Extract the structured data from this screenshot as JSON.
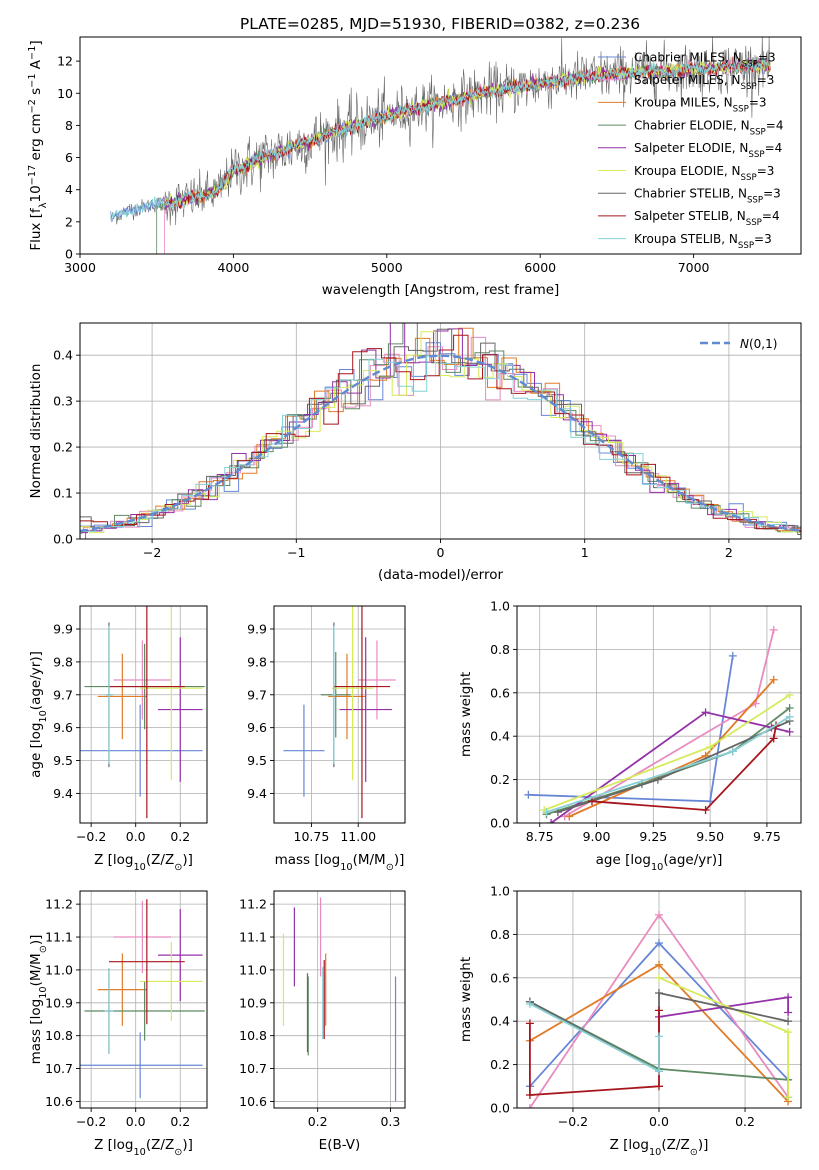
{
  "figure_title": "PLATE=0285, MJD=51930, FIBERID=0382, z=0.236",
  "models": [
    {
      "name": "Chabrier MILES, N$_{SSP}$=3",
      "color": "#6787d6"
    },
    {
      "name": "Salpeter MILES, N$_{SSP}$=3",
      "color": "#e88cc0"
    },
    {
      "name": "Kroupa MILES, N$_{SSP}$=3",
      "color": "#e07b28"
    },
    {
      "name": "Chabrier ELODIE, N$_{SSP}$=4",
      "color": "#5f8a64"
    },
    {
      "name": "Salpeter ELODIE, N$_{SSP}$=4",
      "color": "#9430a8"
    },
    {
      "name": "Kroupa ELODIE, N$_{SSP}$=3",
      "color": "#d6ea5a"
    },
    {
      "name": "Chabrier STELIB, N$_{SSP}$=3",
      "color": "#666666"
    },
    {
      "name": "Salpeter STELIB, N$_{SSP}$=4",
      "color": "#a8161d"
    },
    {
      "name": "Kroupa STELIB, N$_{SSP}$=3",
      "color": "#86d0d6"
    }
  ],
  "chart_data": [
    {
      "id": "spectrum",
      "type": "line",
      "xlabel": "wavelength [Angstrom, rest frame]",
      "ylabel": "Flux [f$_\\lambda$10$^{-17}$ erg cm$^{-2}$ s$^{-1}$ A$^{-1}$]",
      "xlim": [
        3000,
        7700
      ],
      "ylim": [
        0,
        13.5
      ],
      "xticks": [
        3000,
        4000,
        5000,
        6000,
        7000
      ],
      "yticks": [
        0,
        2,
        4,
        6,
        8,
        10,
        12
      ],
      "grid": false,
      "legend": "upper right",
      "continuum": {
        "x": [
          3200,
          3300,
          3400,
          3500,
          3600,
          3700,
          3800,
          3900,
          4000,
          4200,
          4400,
          4600,
          4800,
          5000,
          5200,
          5400,
          5600,
          5800,
          6000,
          6200,
          6400,
          6600,
          6800,
          7000,
          7200,
          7400,
          7500
        ],
        "y": [
          2.2,
          2.6,
          2.9,
          3.1,
          3.2,
          3.4,
          3.6,
          3.9,
          5.2,
          6.0,
          6.7,
          7.4,
          8.0,
          8.6,
          9.1,
          9.5,
          10.0,
          10.3,
          10.6,
          10.9,
          11.1,
          11.3,
          11.4,
          11.5,
          11.6,
          11.7,
          11.7
        ]
      }
    },
    {
      "id": "residuals",
      "type": "line",
      "xlabel": "(data-model)/error",
      "ylabel": "Normed distribution",
      "xlim": [
        -2.5,
        2.5
      ],
      "ylim": [
        0,
        0.47
      ],
      "xticks": [
        -2,
        -1,
        0,
        1,
        2
      ],
      "yticks": [
        0.0,
        0.1,
        0.2,
        0.3,
        0.4
      ],
      "grid": true,
      "legend": "upper right",
      "reference_label": "$\\mathcal{N}(0,1)$",
      "reference_mean": 0,
      "reference_sigma": 1
    },
    {
      "id": "age_vs_z",
      "type": "scatter",
      "xlabel": "Z [log$_{10}$(Z/Z$_\\odot$)]",
      "ylabel": "age  [log$_{10}$(age/yr)]",
      "xlim": [
        -0.25,
        0.32
      ],
      "ylim": [
        9.31,
        9.97
      ],
      "xticks": [
        -0.2,
        0.0,
        0.2
      ],
      "xtick_labels": [
        "−0.2",
        "0.0",
        "0.2"
      ],
      "yticks": [
        9.4,
        9.5,
        9.6,
        9.7,
        9.8,
        9.9
      ],
      "grid": true,
      "points": [
        {
          "x": 0.02,
          "y": 9.53,
          "xerr": 0.28,
          "yerr": 0.14,
          "series": 0
        },
        {
          "x": 0.03,
          "y": 9.745,
          "xerr": 0.13,
          "yerr": 0.12,
          "series": 1
        },
        {
          "x": -0.06,
          "y": 9.695,
          "xerr": 0.11,
          "yerr": 0.13,
          "series": 2
        },
        {
          "x": 0.04,
          "y": 9.725,
          "xerr": 0.27,
          "yerr": 0.13,
          "series": 3
        },
        {
          "x": 0.2,
          "y": 9.655,
          "xerr": 0.1,
          "yerr": 0.22,
          "series": 4
        },
        {
          "x": 0.16,
          "y": 9.72,
          "xerr": 0.14,
          "yerr": 0.28,
          "series": 5
        },
        {
          "x": -0.12,
          "y": 9.7,
          "xerr": 0.01,
          "yerr": 0.22,
          "series": 6
        },
        {
          "x": 0.05,
          "y": 9.725,
          "xerr": 0.17,
          "yerr": 0.4,
          "series": 7
        },
        {
          "x": -0.12,
          "y": 9.7,
          "xerr": 0.02,
          "yerr": 0.21,
          "series": 8
        }
      ]
    },
    {
      "id": "age_vs_mass",
      "type": "scatter",
      "xlabel": "mass [log$_{10}$(M/M$_\\odot$)]",
      "xlim": [
        10.55,
        11.25
      ],
      "ylim": [
        9.31,
        9.97
      ],
      "xticks": [
        10.75,
        11.0
      ],
      "xtick_labels": [
        "10.75",
        "11.00"
      ],
      "yticks": [
        9.4,
        9.5,
        9.6,
        9.7,
        9.8,
        9.9
      ],
      "grid": true,
      "points": [
        {
          "x": 10.71,
          "y": 9.53,
          "xerr": 0.11,
          "yerr": 0.14,
          "series": 0
        },
        {
          "x": 11.1,
          "y": 9.745,
          "xerr": 0.1,
          "yerr": 0.12,
          "series": 1
        },
        {
          "x": 10.94,
          "y": 9.695,
          "xerr": 0.1,
          "yerr": 0.13,
          "series": 2
        },
        {
          "x": 10.88,
          "y": 9.7,
          "xerr": 0.08,
          "yerr": 0.13,
          "series": 3
        },
        {
          "x": 11.04,
          "y": 9.655,
          "xerr": 0.14,
          "yerr": 0.22,
          "series": 4
        },
        {
          "x": 10.97,
          "y": 9.72,
          "xerr": 0.11,
          "yerr": 0.28,
          "series": 5
        },
        {
          "x": 10.87,
          "y": 9.7,
          "xerr": 0.005,
          "yerr": 0.22,
          "series": 6
        },
        {
          "x": 11.02,
          "y": 9.725,
          "xerr": 0.15,
          "yerr": 0.4,
          "series": 7
        },
        {
          "x": 10.87,
          "y": 9.7,
          "xerr": 0.01,
          "yerr": 0.21,
          "series": 8
        }
      ]
    },
    {
      "id": "weight_vs_age",
      "type": "line",
      "xlabel": "age  [log$_{10}$(age/yr)]",
      "ylabel": "mass weight",
      "xlim": [
        8.65,
        9.9
      ],
      "ylim": [
        0,
        1
      ],
      "xticks": [
        8.75,
        9.0,
        9.25,
        9.5,
        9.75
      ],
      "xtick_labels": [
        "8.75",
        "9.00",
        "9.25",
        "9.50",
        "9.75"
      ],
      "yticks": [
        0.0,
        0.2,
        0.4,
        0.6,
        0.8,
        1.0
      ],
      "grid": true,
      "series": [
        {
          "x": [
            8.7,
            9.5,
            9.6
          ],
          "y": [
            0.13,
            0.1,
            0.77
          ],
          "color_index": 0
        },
        {
          "x": [
            8.86,
            9.7,
            9.78
          ],
          "y": [
            0.03,
            0.55,
            0.89
          ],
          "color_index": 1
        },
        {
          "x": [
            8.88,
            9.48,
            9.78
          ],
          "y": [
            0.03,
            0.31,
            0.66
          ],
          "color_index": 2
        },
        {
          "x": [
            8.78,
            9.2,
            9.6,
            9.85
          ],
          "y": [
            0.04,
            0.18,
            0.33,
            0.53
          ],
          "color_index": 3
        },
        {
          "x": [
            8.8,
            9.48,
            9.77,
            9.85
          ],
          "y": [
            0.0,
            0.51,
            0.44,
            0.42
          ],
          "color_index": 4
        },
        {
          "x": [
            8.77,
            9.5,
            9.85
          ],
          "y": [
            0.06,
            0.35,
            0.59
          ],
          "color_index": 5
        },
        {
          "x": [
            8.83,
            9.27,
            9.85
          ],
          "y": [
            0.05,
            0.2,
            0.47
          ],
          "color_index": 6
        },
        {
          "x": [
            8.98,
            9.48,
            9.78,
            9.79
          ],
          "y": [
            0.1,
            0.06,
            0.39,
            0.45
          ],
          "color_index": 7
        },
        {
          "x": [
            8.78,
            9.6,
            9.85
          ],
          "y": [
            0.05,
            0.33,
            0.49
          ],
          "color_index": 8
        }
      ]
    },
    {
      "id": "mass_vs_z",
      "type": "scatter",
      "xlabel": "Z [log$_{10}$(Z/Z$_\\odot$)]",
      "ylabel": "mass [log$_{10}$(M/M$_\\odot$)]",
      "xlim": [
        -0.25,
        0.32
      ],
      "ylim": [
        10.58,
        11.24
      ],
      "xticks": [
        -0.2,
        0.0,
        0.2
      ],
      "xtick_labels": [
        "−0.2",
        "0.0",
        "0.2"
      ],
      "yticks": [
        10.6,
        10.7,
        10.8,
        10.9,
        11.0,
        11.1,
        11.2
      ],
      "grid": true,
      "points": [
        {
          "x": 0.02,
          "y": 10.71,
          "xerr": 0.28,
          "yerr": 0.1,
          "series": 0
        },
        {
          "x": 0.03,
          "y": 11.1,
          "xerr": 0.13,
          "yerr": 0.11,
          "series": 1
        },
        {
          "x": -0.06,
          "y": 10.94,
          "xerr": 0.11,
          "yerr": 0.11,
          "series": 2
        },
        {
          "x": 0.04,
          "y": 10.875,
          "xerr": 0.27,
          "yerr": 0.09,
          "series": 3
        },
        {
          "x": 0.2,
          "y": 11.045,
          "xerr": 0.1,
          "yerr": 0.14,
          "series": 4
        },
        {
          "x": 0.16,
          "y": 10.965,
          "xerr": 0.14,
          "yerr": 0.12,
          "series": 5
        },
        {
          "x": -0.12,
          "y": 10.875,
          "xerr": 0.01,
          "yerr": 0.13,
          "series": 6
        },
        {
          "x": 0.05,
          "y": 11.025,
          "xerr": 0.17,
          "yerr": 0.19,
          "series": 7
        },
        {
          "x": -0.12,
          "y": 10.875,
          "xerr": 0.02,
          "yerr": 0.13,
          "series": 8
        }
      ]
    },
    {
      "id": "mass_vs_ebv",
      "type": "scatter",
      "xlabel": "E(B-V)",
      "xlim": [
        0.14,
        0.32
      ],
      "ylim": [
        10.58,
        11.24
      ],
      "xticks": [
        0.2,
        0.3
      ],
      "xtick_labels": [
        "0.2",
        "0.3"
      ],
      "yticks": [
        10.6,
        10.7,
        10.8,
        10.9,
        11.0,
        11.1,
        11.2
      ],
      "grid": true,
      "points": [
        {
          "x": 0.307,
          "y": 10.79,
          "xerr": 0,
          "yerr": 0.19,
          "series": 0
        },
        {
          "x": 0.204,
          "y": 11.1,
          "xerr": 0,
          "yerr": 0.12,
          "series": 1
        },
        {
          "x": 0.211,
          "y": 10.94,
          "xerr": 0,
          "yerr": 0.11,
          "series": 2
        },
        {
          "x": 0.187,
          "y": 10.86,
          "xerr": 0,
          "yerr": 0.12,
          "series": 3
        },
        {
          "x": 0.168,
          "y": 11.07,
          "xerr": 0,
          "yerr": 0.12,
          "series": 4
        },
        {
          "x": 0.153,
          "y": 10.97,
          "xerr": 0,
          "yerr": 0.14,
          "series": 5
        },
        {
          "x": 0.186,
          "y": 10.87,
          "xerr": 0,
          "yerr": 0.12,
          "series": 6
        },
        {
          "x": 0.209,
          "y": 10.91,
          "xerr": 0,
          "yerr": 0.12,
          "series": 7
        },
        {
          "x": 0.207,
          "y": 10.9,
          "xerr": 0,
          "yerr": 0.11,
          "series": 8
        }
      ]
    },
    {
      "id": "weight_vs_z",
      "type": "line",
      "xlabel": "Z [log$_{10}$(Z/Z$_\\odot$)]",
      "ylabel": "mass weight",
      "xlim": [
        -0.33,
        0.33
      ],
      "ylim": [
        0,
        1
      ],
      "xticks": [
        -0.2,
        0.0,
        0.2
      ],
      "xtick_labels": [
        "−0.2",
        "0.0",
        "0.2"
      ],
      "yticks": [
        0.0,
        0.2,
        0.4,
        0.6,
        0.8,
        1.0
      ],
      "grid": true,
      "series": [
        {
          "x": [
            -0.3,
            0.0,
            0.3
          ],
          "y": [
            0.1,
            0.76,
            0.13
          ],
          "color_index": 0
        },
        {
          "x": [
            -0.3,
            0.0,
            0.3
          ],
          "y": [
            0.0,
            0.89,
            0.05
          ],
          "color_index": 1
        },
        {
          "x": [
            -0.3,
            0.0,
            0.3
          ],
          "y": [
            0.31,
            0.66,
            0.03
          ],
          "color_index": 2
        },
        {
          "x": [
            -0.3,
            0.0,
            0.3,
            0.3
          ],
          "y": [
            0.49,
            0.18,
            0.13,
            0.05
          ],
          "color_index": 3
        },
        {
          "x": [
            0.0,
            0.3,
            0.3
          ],
          "y": [
            0.42,
            0.51,
            0.44
          ],
          "color_index": 4
        },
        {
          "x": [
            0.0,
            0.3,
            0.3
          ],
          "y": [
            0.6,
            0.35,
            0.05
          ],
          "color_index": 5
        },
        {
          "x": [
            -0.3,
            0.0,
            0.0,
            0.3
          ],
          "y": [
            0.49,
            0.17,
            0.53,
            0.4
          ],
          "color_index": 6
        },
        {
          "x": [
            -0.3,
            -0.3,
            0.0,
            0.0
          ],
          "y": [
            0.39,
            0.06,
            0.1,
            0.45
          ],
          "color_index": 7
        },
        {
          "x": [
            -0.3,
            0.0,
            0.0
          ],
          "y": [
            0.48,
            0.17,
            0.33
          ],
          "color_index": 8
        }
      ]
    }
  ]
}
